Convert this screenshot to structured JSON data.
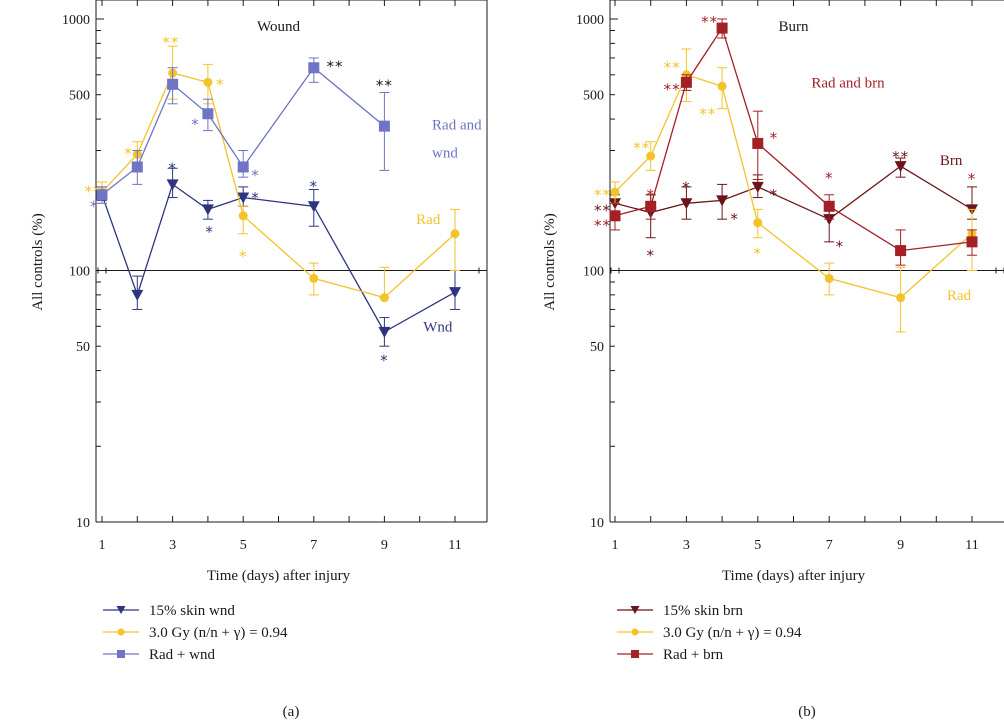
{
  "colors": {
    "wound": "#2e3580",
    "rad": "#f2c32a",
    "rad_wound": "#6f74c4",
    "burn": "#6b1419",
    "rad_burn": "#a32026",
    "axis": "#1a1a1a"
  },
  "chart_data": [
    {
      "type": "line",
      "panel_label": "(a)",
      "title": "Wound",
      "xlabel": "Time (days) after injury",
      "ylabel": "All controls (%)",
      "xlim": [
        1,
        12
      ],
      "ylim": [
        10,
        1000
      ],
      "yscale": "log",
      "xticks": [
        1,
        3,
        5,
        7,
        9,
        11
      ],
      "xtick_labels": [
        "1",
        "3",
        "5",
        "7",
        "9",
        "11"
      ],
      "yticks": [
        10,
        50,
        100,
        500,
        1000
      ],
      "ytick_labels": [
        "10",
        "50",
        "100",
        "500",
        "1000"
      ],
      "reference_line": 100,
      "series": [
        {
          "name": "15% skin wnd",
          "color_key": "wound",
          "marker": "triangle-down",
          "x": [
            1,
            2,
            3,
            4,
            5,
            7,
            9,
            11
          ],
          "y": [
            200,
            80,
            220,
            175,
            195,
            180,
            57,
            82
          ],
          "err_hi": [
            215,
            95,
            255,
            190,
            215,
            210,
            65,
            100
          ],
          "err_lo": [
            190,
            70,
            195,
            160,
            180,
            150,
            50,
            70
          ],
          "stars": [
            {
              "x": 3,
              "y": 262,
              "text": "*"
            },
            {
              "x": 4.05,
              "y": 146,
              "text": "*"
            },
            {
              "x": 5.35,
              "y": 200,
              "text": "*"
            },
            {
              "x": 7,
              "y": 222,
              "text": "*"
            },
            {
              "x": 9,
              "y": 45,
              "text": "*"
            }
          ]
        },
        {
          "name": "3.0 Gy (n/n + γ) = 0.94",
          "color_key": "rad",
          "marker": "circle",
          "x": [
            1,
            2,
            3,
            4,
            5,
            7,
            9,
            11
          ],
          "y": [
            205,
            290,
            610,
            560,
            165,
            93,
            78,
            140
          ],
          "err_hi": [
            225,
            325,
            780,
            660,
            180,
            107,
            103,
            175
          ],
          "err_lo": [
            185,
            255,
            480,
            460,
            140,
            80,
            78,
            100
          ],
          "stars": [
            {
              "x": 0.75,
              "y": 212,
              "text": "**"
            },
            {
              "x": 1.75,
              "y": 300,
              "text": "*"
            },
            {
              "x": 2.95,
              "y": 830,
              "text": "**"
            },
            {
              "x": 4.35,
              "y": 565,
              "text": "*"
            },
            {
              "x": 5,
              "y": 117,
              "text": "*"
            }
          ]
        },
        {
          "name": "Rad + wnd",
          "color_key": "rad_wound",
          "marker": "square",
          "x": [
            1,
            2,
            3,
            4,
            7,
            9,
            5
          ],
          "y": [
            200,
            258,
            550,
            420,
            640,
            375,
            258
          ],
          "err_hi": [
            215,
            300,
            640,
            480,
            700,
            510,
            300
          ],
          "err_lo": [
            185,
            220,
            460,
            360,
            560,
            250,
            235
          ],
          "order_note": "",
          "stars": [
            {
              "x": 0.78,
              "y": 185,
              "text": "*"
            },
            {
              "x": 3.65,
              "y": 392,
              "text": "*"
            },
            {
              "x": 5.35,
              "y": 245,
              "text": "*"
            }
          ]
        }
      ],
      "extra_stars": [
        {
          "x": 7.6,
          "y": 665,
          "text": "**",
          "color_key": "axis"
        },
        {
          "x": 9,
          "y": 560,
          "text": "**",
          "color_key": "axis"
        }
      ],
      "annotations": [
        {
          "text": "Rad and",
          "x": 10.35,
          "y": 380,
          "color_key": "rad_wound"
        },
        {
          "text": "wnd",
          "x": 10.35,
          "y": 295,
          "color_key": "rad_wound"
        },
        {
          "text": "Rad",
          "x": 9.9,
          "y": 160,
          "color_key": "rad"
        },
        {
          "text": "Wnd",
          "x": 10.1,
          "y": 60,
          "color_key": "wound"
        }
      ]
    },
    {
      "type": "line",
      "panel_label": "(b)",
      "title": "Burn",
      "xlabel": "Time (days) after injury",
      "ylabel": "All controls (%)",
      "xlim": [
        1,
        12
      ],
      "ylim": [
        10,
        1000
      ],
      "yscale": "log",
      "xticks": [
        1,
        3,
        5,
        7,
        9,
        11
      ],
      "xtick_labels": [
        "1",
        "3",
        "5",
        "7",
        "9",
        "11"
      ],
      "yticks": [
        10,
        50,
        100,
        500,
        1000
      ],
      "ytick_labels": [
        "10",
        "50",
        "100",
        "500",
        "1000"
      ],
      "reference_line": 100,
      "series": [
        {
          "name": "15% skin brn",
          "color_key": "burn",
          "marker": "triangle-down",
          "x": [
            1,
            2,
            3,
            4,
            5,
            7,
            9,
            11
          ],
          "y": [
            185,
            170,
            185,
            190,
            215,
            160,
            260,
            175
          ],
          "err_hi": [
            200,
            200,
            215,
            220,
            240,
            185,
            280,
            215
          ],
          "err_lo": [
            170,
            135,
            160,
            160,
            195,
            130,
            235,
            160
          ],
          "stars": [
            {
              "x": 0.65,
              "y": 178,
              "text": "**"
            },
            {
              "x": 2,
              "y": 118,
              "text": "*"
            },
            {
              "x": 3,
              "y": 220,
              "text": "*"
            },
            {
              "x": 4.35,
              "y": 165,
              "text": "*"
            },
            {
              "x": 5.45,
              "y": 205,
              "text": "*"
            },
            {
              "x": 7.3,
              "y": 128,
              "text": "*"
            },
            {
              "x": 9,
              "y": 290,
              "text": "**"
            }
          ]
        },
        {
          "name": "3.0 Gy (n/n + γ) = 0.94",
          "color_key": "rad",
          "marker": "circle",
          "x": [
            1,
            2,
            3,
            4,
            5,
            7,
            9,
            11
          ],
          "y": [
            205,
            285,
            600,
            540,
            155,
            93,
            78,
            140
          ],
          "err_hi": [
            225,
            325,
            760,
            640,
            175,
            107,
            103,
            175
          ],
          "err_lo": [
            185,
            250,
            470,
            440,
            135,
            80,
            57,
            100
          ],
          "stars": [
            {
              "x": 0.65,
              "y": 205,
              "text": "**"
            },
            {
              "x": 1.75,
              "y": 315,
              "text": "**"
            },
            {
              "x": 2.6,
              "y": 660,
              "text": "**"
            },
            {
              "x": 3.6,
              "y": 430,
              "text": "**"
            },
            {
              "x": 5,
              "y": 120,
              "text": "*"
            }
          ]
        },
        {
          "name": "Rad + brn",
          "color_key": "rad_burn",
          "marker": "square",
          "x": [
            1,
            2,
            3,
            4,
            5,
            7,
            9,
            11
          ],
          "y": [
            165,
            180,
            560,
            920,
            320,
            180,
            120,
            130
          ],
          "err_hi": [
            185,
            200,
            600,
            1000,
            430,
            200,
            145,
            145
          ],
          "err_lo": [
            145,
            160,
            520,
            840,
            230,
            160,
            105,
            115
          ],
          "stars": [
            {
              "x": 0.65,
              "y": 155,
              "text": "**"
            },
            {
              "x": 2,
              "y": 205,
              "text": "*"
            },
            {
              "x": 2.6,
              "y": 540,
              "text": "**"
            },
            {
              "x": 3.65,
              "y": 1000,
              "text": "**"
            },
            {
              "x": 5.45,
              "y": 345,
              "text": "*"
            },
            {
              "x": 7,
              "y": 240,
              "text": "*"
            },
            {
              "x": 11,
              "y": 238,
              "text": "*"
            }
          ]
        }
      ],
      "extra_stars": [],
      "annotations": [
        {
          "text": "Rad and brn",
          "x": 6.5,
          "y": 560,
          "color_key": "rad_burn"
        },
        {
          "text": "Brn",
          "x": 10.1,
          "y": 275,
          "color_key": "burn"
        },
        {
          "text": "Rad",
          "x": 10.3,
          "y": 80,
          "color_key": "rad"
        }
      ]
    }
  ]
}
